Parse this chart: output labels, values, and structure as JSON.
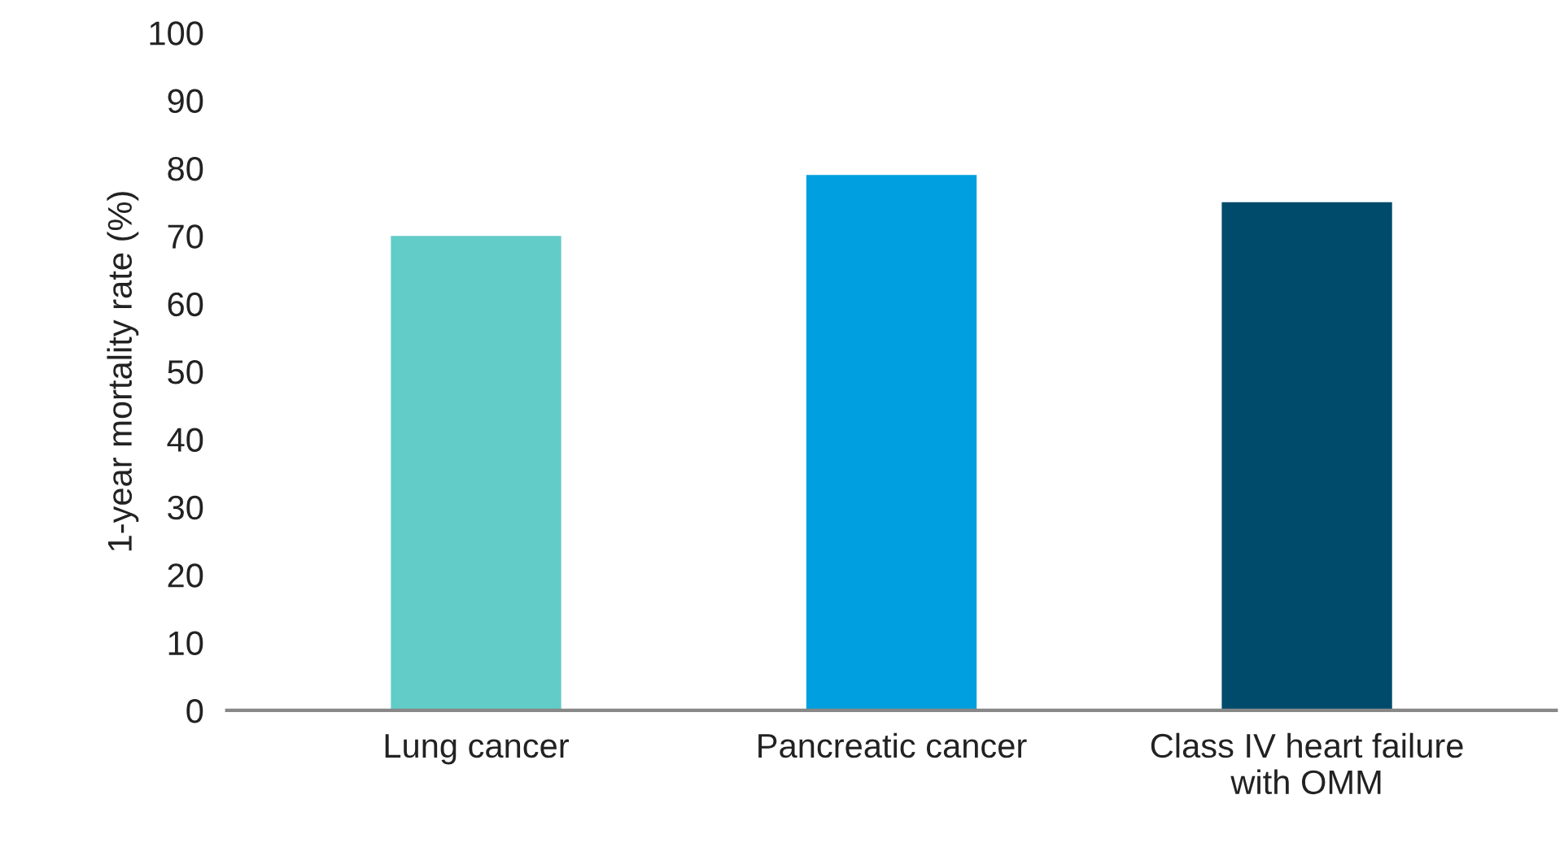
{
  "chart_data": {
    "type": "bar",
    "ylabel": "1-year mortality rate (%)",
    "categories": [
      "Lung cancer",
      "Pancreatic cancer",
      "Class IV heart failure\nwith OMM"
    ],
    "values": [
      70,
      79,
      75
    ],
    "colors": [
      "#62ccc8",
      "#009fdf",
      "#004b6b"
    ],
    "ylim": [
      0,
      100
    ],
    "yticks": [
      0,
      10,
      20,
      30,
      40,
      50,
      60,
      70,
      80,
      90,
      100
    ],
    "grid": false,
    "legend": false
  }
}
